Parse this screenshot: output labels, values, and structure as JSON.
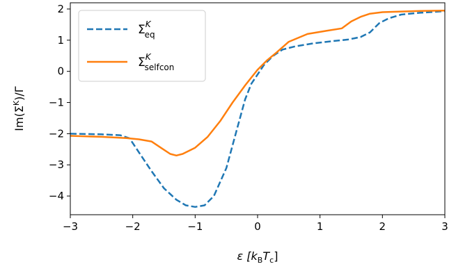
{
  "chart_data": {
    "type": "line",
    "xlabel": {
      "main": "ε [k",
      "sub1": "B",
      "mid": "T",
      "sub2": "c",
      "end": "]"
    },
    "ylabel": {
      "main": "Im(Σ",
      "sup": "K",
      "end": ")/Γ"
    },
    "xlim": [
      -3,
      3
    ],
    "ylim": [
      -4.6,
      2.2
    ],
    "xticks": [
      -3,
      -2,
      -1,
      0,
      1,
      2,
      3
    ],
    "yticks": [
      2,
      1,
      0,
      -1,
      -2,
      -3,
      -4
    ],
    "xtick_labels": [
      "−3",
      "−2",
      "−1",
      "0",
      "1",
      "2",
      "3"
    ],
    "ytick_labels": [
      "2",
      "1",
      "0",
      "−1",
      "−2",
      "−3",
      "−4"
    ],
    "legend_position": "upper-left",
    "series": [
      {
        "name": "Σ_eq^K",
        "label_base": "Σ",
        "label_sup": "K",
        "label_sub": "eq",
        "color": "#1f77b4",
        "style": "dashed",
        "x": [
          -3.0,
          -2.5,
          -2.2,
          -2.05,
          -1.9,
          -1.7,
          -1.5,
          -1.3,
          -1.15,
          -1.0,
          -0.85,
          -0.7,
          -0.5,
          -0.35,
          -0.2,
          -0.1,
          0.0,
          0.1,
          0.25,
          0.4,
          0.6,
          0.9,
          1.2,
          1.45,
          1.65,
          1.8,
          1.95,
          2.1,
          2.3,
          2.6,
          3.0
        ],
        "y": [
          -2.0,
          -2.02,
          -2.05,
          -2.15,
          -2.6,
          -3.2,
          -3.75,
          -4.12,
          -4.3,
          -4.35,
          -4.3,
          -4.0,
          -3.1,
          -2.0,
          -0.9,
          -0.4,
          -0.1,
          0.2,
          0.5,
          0.7,
          0.8,
          0.9,
          0.97,
          1.02,
          1.1,
          1.25,
          1.55,
          1.7,
          1.82,
          1.88,
          1.93
        ]
      },
      {
        "name": "Σ_selfcon^K",
        "label_base": "Σ",
        "label_sup": "K",
        "label_sub": "selfcon",
        "color": "#ff7f0e",
        "style": "solid",
        "x": [
          -3.0,
          -2.5,
          -2.1,
          -1.9,
          -1.7,
          -1.55,
          -1.4,
          -1.3,
          -1.2,
          -1.0,
          -0.8,
          -0.6,
          -0.4,
          -0.2,
          -0.1,
          0.0,
          0.15,
          0.3,
          0.5,
          0.8,
          1.1,
          1.35,
          1.5,
          1.65,
          1.8,
          2.0,
          2.3,
          2.6,
          3.0
        ],
        "y": [
          -2.07,
          -2.1,
          -2.14,
          -2.18,
          -2.25,
          -2.45,
          -2.65,
          -2.7,
          -2.65,
          -2.45,
          -2.1,
          -1.6,
          -1.0,
          -0.45,
          -0.2,
          0.05,
          0.35,
          0.6,
          0.95,
          1.2,
          1.3,
          1.38,
          1.6,
          1.75,
          1.85,
          1.9,
          1.92,
          1.94,
          1.95
        ]
      }
    ]
  }
}
